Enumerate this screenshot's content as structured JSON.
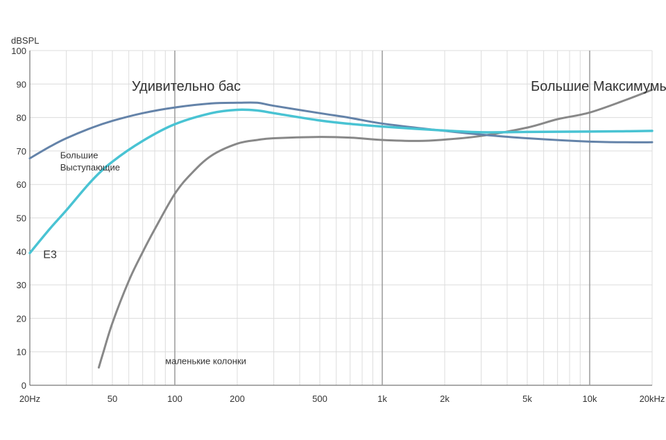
{
  "chart_data": {
    "type": "line",
    "ylabel": "dBSPL",
    "x_scale": "log",
    "xlim": [
      20,
      20000
    ],
    "ylim": [
      0,
      100
    ],
    "grid": true,
    "y_ticks": [
      0,
      10,
      20,
      30,
      40,
      50,
      60,
      70,
      80,
      90,
      100
    ],
    "x_tick_values": [
      20,
      50,
      100,
      200,
      500,
      1000,
      2000,
      5000,
      10000,
      20000
    ],
    "x_tick_labels": [
      "20Hz",
      "50",
      "100",
      "200",
      "500",
      "1k",
      "2k",
      "5k",
      "10k",
      "20kHz"
    ],
    "decade_lines": [
      100,
      1000,
      10000
    ],
    "annotations": [
      {
        "text": "Удивительно бас",
        "x": 62,
        "y": 88,
        "style": "big"
      },
      {
        "text": "Большие Максимумы",
        "x": 5200,
        "y": 88,
        "style": "big"
      },
      {
        "text": "Большие",
        "x": 28,
        "y": 67.8,
        "style": "small"
      },
      {
        "text": "Выступающие",
        "x": 28,
        "y": 64.2,
        "style": "small"
      },
      {
        "text": "E3",
        "x": 23.2,
        "y": 38,
        "style": "mid"
      },
      {
        "text": "маленькие колонки",
        "x": 90,
        "y": 6.3,
        "style": "small"
      }
    ],
    "series": [
      {
        "color": "#6483a9",
        "x": [
          20,
          25,
          30,
          40,
          50,
          70,
          100,
          150,
          200,
          250,
          300,
          500,
          700,
          1000,
          2000,
          3000,
          5000,
          10000,
          15000,
          20000
        ],
        "y": [
          67.8,
          71.3,
          73.8,
          77.0,
          79.0,
          81.3,
          83.0,
          84.2,
          84.4,
          84.4,
          83.5,
          81.3,
          79.9,
          78.2,
          76.0,
          74.9,
          73.8,
          72.8,
          72.6,
          72.6
        ]
      },
      {
        "color": "#49c3d3",
        "x": [
          20,
          25,
          30,
          40,
          50,
          70,
          100,
          150,
          200,
          250,
          300,
          500,
          700,
          1000,
          2000,
          3000,
          5000,
          10000,
          15000,
          20000
        ],
        "y": [
          39.5,
          46.8,
          52.3,
          61.3,
          66.8,
          73.0,
          78.0,
          81.3,
          82.3,
          82.1,
          81.3,
          79.1,
          78.1,
          77.3,
          76.1,
          75.6,
          75.7,
          75.8,
          75.9,
          76.0
        ]
      },
      {
        "color": "#888888",
        "x": [
          43,
          45,
          50,
          60,
          70,
          80,
          100,
          120,
          150,
          200,
          250,
          300,
          500,
          700,
          1000,
          1500,
          2000,
          3000,
          5000,
          7000,
          10000,
          15000,
          20000
        ],
        "y": [
          5.3,
          9.4,
          18.6,
          31.2,
          39.8,
          46.6,
          57.2,
          63.2,
          68.6,
          72.2,
          73.3,
          73.8,
          74.2,
          74.0,
          73.3,
          73.0,
          73.4,
          74.5,
          77.0,
          79.5,
          81.5,
          85.3,
          88.3
        ]
      }
    ]
  }
}
